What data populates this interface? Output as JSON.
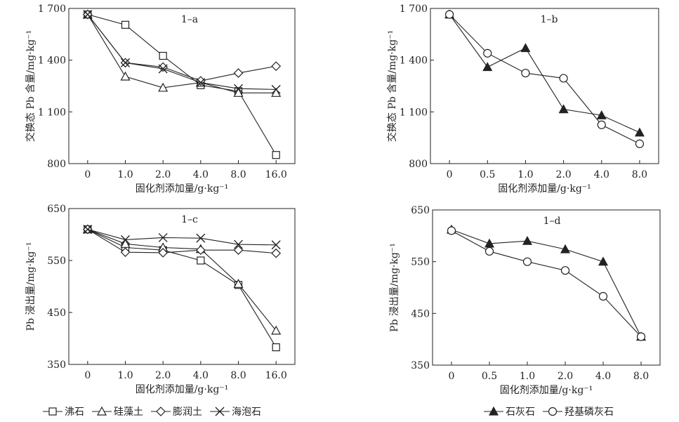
{
  "legend_left": {
    "items": [
      {
        "label": "沸石",
        "marker": "square"
      },
      {
        "label": "硅藻土",
        "marker": "triangle"
      },
      {
        "label": "膨润土",
        "marker": "diamond"
      },
      {
        "label": "海泡石",
        "marker": "x"
      }
    ]
  },
  "legend_right": {
    "items": [
      {
        "label": "石灰石",
        "marker": "triangle-filled"
      },
      {
        "label": "羟基磷灰石",
        "marker": "circle"
      }
    ]
  },
  "chart_data": [
    {
      "type": "line",
      "panel_label": "1–a",
      "ylabel": "交换态 Pb 含量/mg·kg⁻¹",
      "xlabel": "固化剂添加量/g·kg⁻¹",
      "categories": [
        "0",
        "1.0",
        "2.0",
        "4.0",
        "8.0",
        "16.0"
      ],
      "yticks": [
        "800",
        "1 100",
        "1 400",
        "1 700"
      ],
      "ylim": [
        800,
        1700
      ],
      "series": [
        {
          "name": "沸石",
          "marker": "square",
          "values": [
            1665,
            1605,
            1425,
            1255,
            1220,
            850
          ]
        },
        {
          "name": "硅藻土",
          "marker": "triangle",
          "values": [
            1665,
            1305,
            1240,
            1270,
            1210,
            1210
          ]
        },
        {
          "name": "膨润土",
          "marker": "diamond",
          "values": [
            1665,
            1385,
            1360,
            1280,
            1325,
            1365
          ]
        },
        {
          "name": "海泡石",
          "marker": "x",
          "values": [
            1665,
            1385,
            1350,
            1270,
            1235,
            1230
          ]
        }
      ]
    },
    {
      "type": "line",
      "panel_label": "1–b",
      "ylabel": "交换态 Pb 含量/mg·kg⁻¹",
      "xlabel": "固化剂添加量/g·kg⁻¹",
      "categories": [
        "0",
        "0.5",
        "1.0",
        "2.0",
        "4.0",
        "8.0"
      ],
      "yticks": [
        "800",
        "1 100",
        "1 400",
        "1 700"
      ],
      "ylim": [
        800,
        1700
      ],
      "series": [
        {
          "name": "石灰石",
          "marker": "triangle-filled",
          "values": [
            1665,
            1360,
            1470,
            1115,
            1080,
            980
          ]
        },
        {
          "name": "羟基磷灰石",
          "marker": "circle",
          "values": [
            1665,
            1440,
            1325,
            1295,
            1025,
            915
          ]
        }
      ]
    },
    {
      "type": "line",
      "panel_label": "1–c",
      "ylabel": "Pb 浸出量/mg·kg⁻¹",
      "xlabel": "固化剂添加量/g·kg⁻¹",
      "categories": [
        "0",
        "1.0",
        "2.0",
        "4.0",
        "8.0",
        "16.0"
      ],
      "yticks": [
        "350",
        "450",
        "550",
        "650"
      ],
      "ylim": [
        350,
        650
      ],
      "series": [
        {
          "name": "沸石",
          "marker": "square",
          "values": [
            610,
            575,
            570,
            550,
            503,
            383
          ]
        },
        {
          "name": "硅藻土",
          "marker": "triangle",
          "values": [
            610,
            582,
            575,
            572,
            505,
            415
          ]
        },
        {
          "name": "膨润土",
          "marker": "diamond",
          "values": [
            610,
            566,
            565,
            570,
            570,
            564
          ]
        },
        {
          "name": "海泡石",
          "marker": "x",
          "values": [
            610,
            590,
            594,
            593,
            581,
            580
          ]
        }
      ]
    },
    {
      "type": "line",
      "panel_label": "1–d",
      "ylabel": "Pb 浸出量/mg·kg⁻¹",
      "xlabel": "固化剂添加量/g·kg⁻¹",
      "categories": [
        "0",
        "0.5",
        "1.0",
        "2.0",
        "4.0",
        "8.0"
      ],
      "yticks": [
        "350",
        "450",
        "550",
        "650"
      ],
      "ylim": [
        350,
        650
      ],
      "series": [
        {
          "name": "石灰石",
          "marker": "triangle-filled",
          "values": [
            612,
            585,
            590,
            574,
            550,
            405
          ]
        },
        {
          "name": "羟基磷灰石",
          "marker": "circle",
          "values": [
            610,
            570,
            550,
            533,
            483,
            405
          ]
        }
      ]
    }
  ]
}
